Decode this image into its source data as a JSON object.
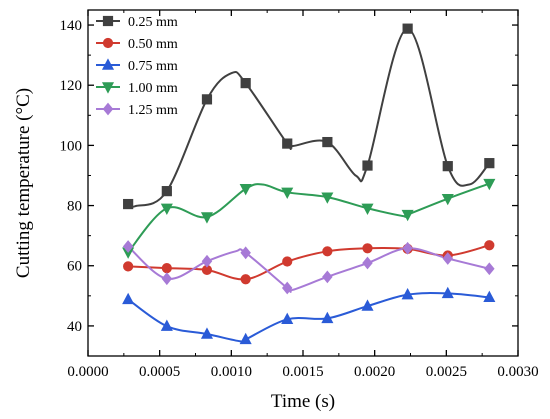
{
  "chart_data": {
    "type": "line",
    "xlabel": "Time (s)",
    "ylabel": "Cutting temperature (°C)",
    "xlim": [
      0.0,
      0.003
    ],
    "ylim": [
      30,
      145
    ],
    "x_ticks": [
      0.0,
      0.0005,
      0.001,
      0.0015,
      0.002,
      0.0025,
      0.003
    ],
    "x_tick_labels": [
      "0.0000",
      "0.0005",
      "0.0010",
      "0.0015",
      "0.0020",
      "0.0025",
      "0.0030"
    ],
    "y_ticks": [
      40,
      60,
      80,
      100,
      120,
      140
    ],
    "y_tick_labels": [
      "40",
      "60",
      "80",
      "100",
      "120",
      "140"
    ],
    "grid": false,
    "legend_position": "top-left",
    "x": [
      0.00028,
      0.00055,
      0.00083,
      0.0011,
      0.00139,
      0.00167,
      0.00195,
      0.00223,
      0.00251,
      0.0028
    ],
    "series": [
      {
        "name": "0.25 mm",
        "color": "#404040",
        "marker": "square",
        "values": [
          80.5,
          84.8,
          115.3,
          120.7,
          100.6,
          101.1,
          93.3,
          138.8,
          93.1,
          94.1
        ],
        "smooth_extrema": [
          [
            0.00033,
            79.8
          ],
          [
            0.001,
            124.0
          ],
          [
            0.00143,
            99.8
          ],
          [
            0.00187,
            89.9
          ],
          [
            0.00266,
            87.0
          ]
        ]
      },
      {
        "name": "0.50 mm",
        "color": "#d03a2f",
        "marker": "circle",
        "values": [
          59.8,
          59.2,
          58.6,
          55.5,
          61.4,
          64.8,
          65.8,
          65.6,
          63.4,
          66.8
        ],
        "smooth_extrema": []
      },
      {
        "name": "0.75 mm",
        "color": "#2a5bd7",
        "marker": "triangle-up",
        "values": [
          48.8,
          39.9,
          37.3,
          35.5,
          42.2,
          42.5,
          46.6,
          50.4,
          50.8,
          49.5
        ],
        "smooth_extrema": [
          [
            0.00106,
            34.9
          ]
        ]
      },
      {
        "name": "1.00 mm",
        "color": "#2e9c56",
        "marker": "triangle-down",
        "values": [
          64.5,
          79.1,
          76.2,
          85.6,
          84.4,
          82.8,
          79.1,
          77.0,
          82.3,
          87.3
        ],
        "smooth_extrema": [
          [
            0.00122,
            87.0
          ],
          [
            0.0022,
            76.5
          ]
        ]
      },
      {
        "name": "1.25 mm",
        "color": "#a77ad6",
        "marker": "diamond",
        "values": [
          66.4,
          55.7,
          61.5,
          64.3,
          52.6,
          56.3,
          60.9,
          65.8,
          62.4,
          59.0
        ],
        "smooth_extrema": [
          [
            0.00103,
            64.8
          ],
          [
            0.00143,
            52.0
          ]
        ]
      }
    ]
  }
}
